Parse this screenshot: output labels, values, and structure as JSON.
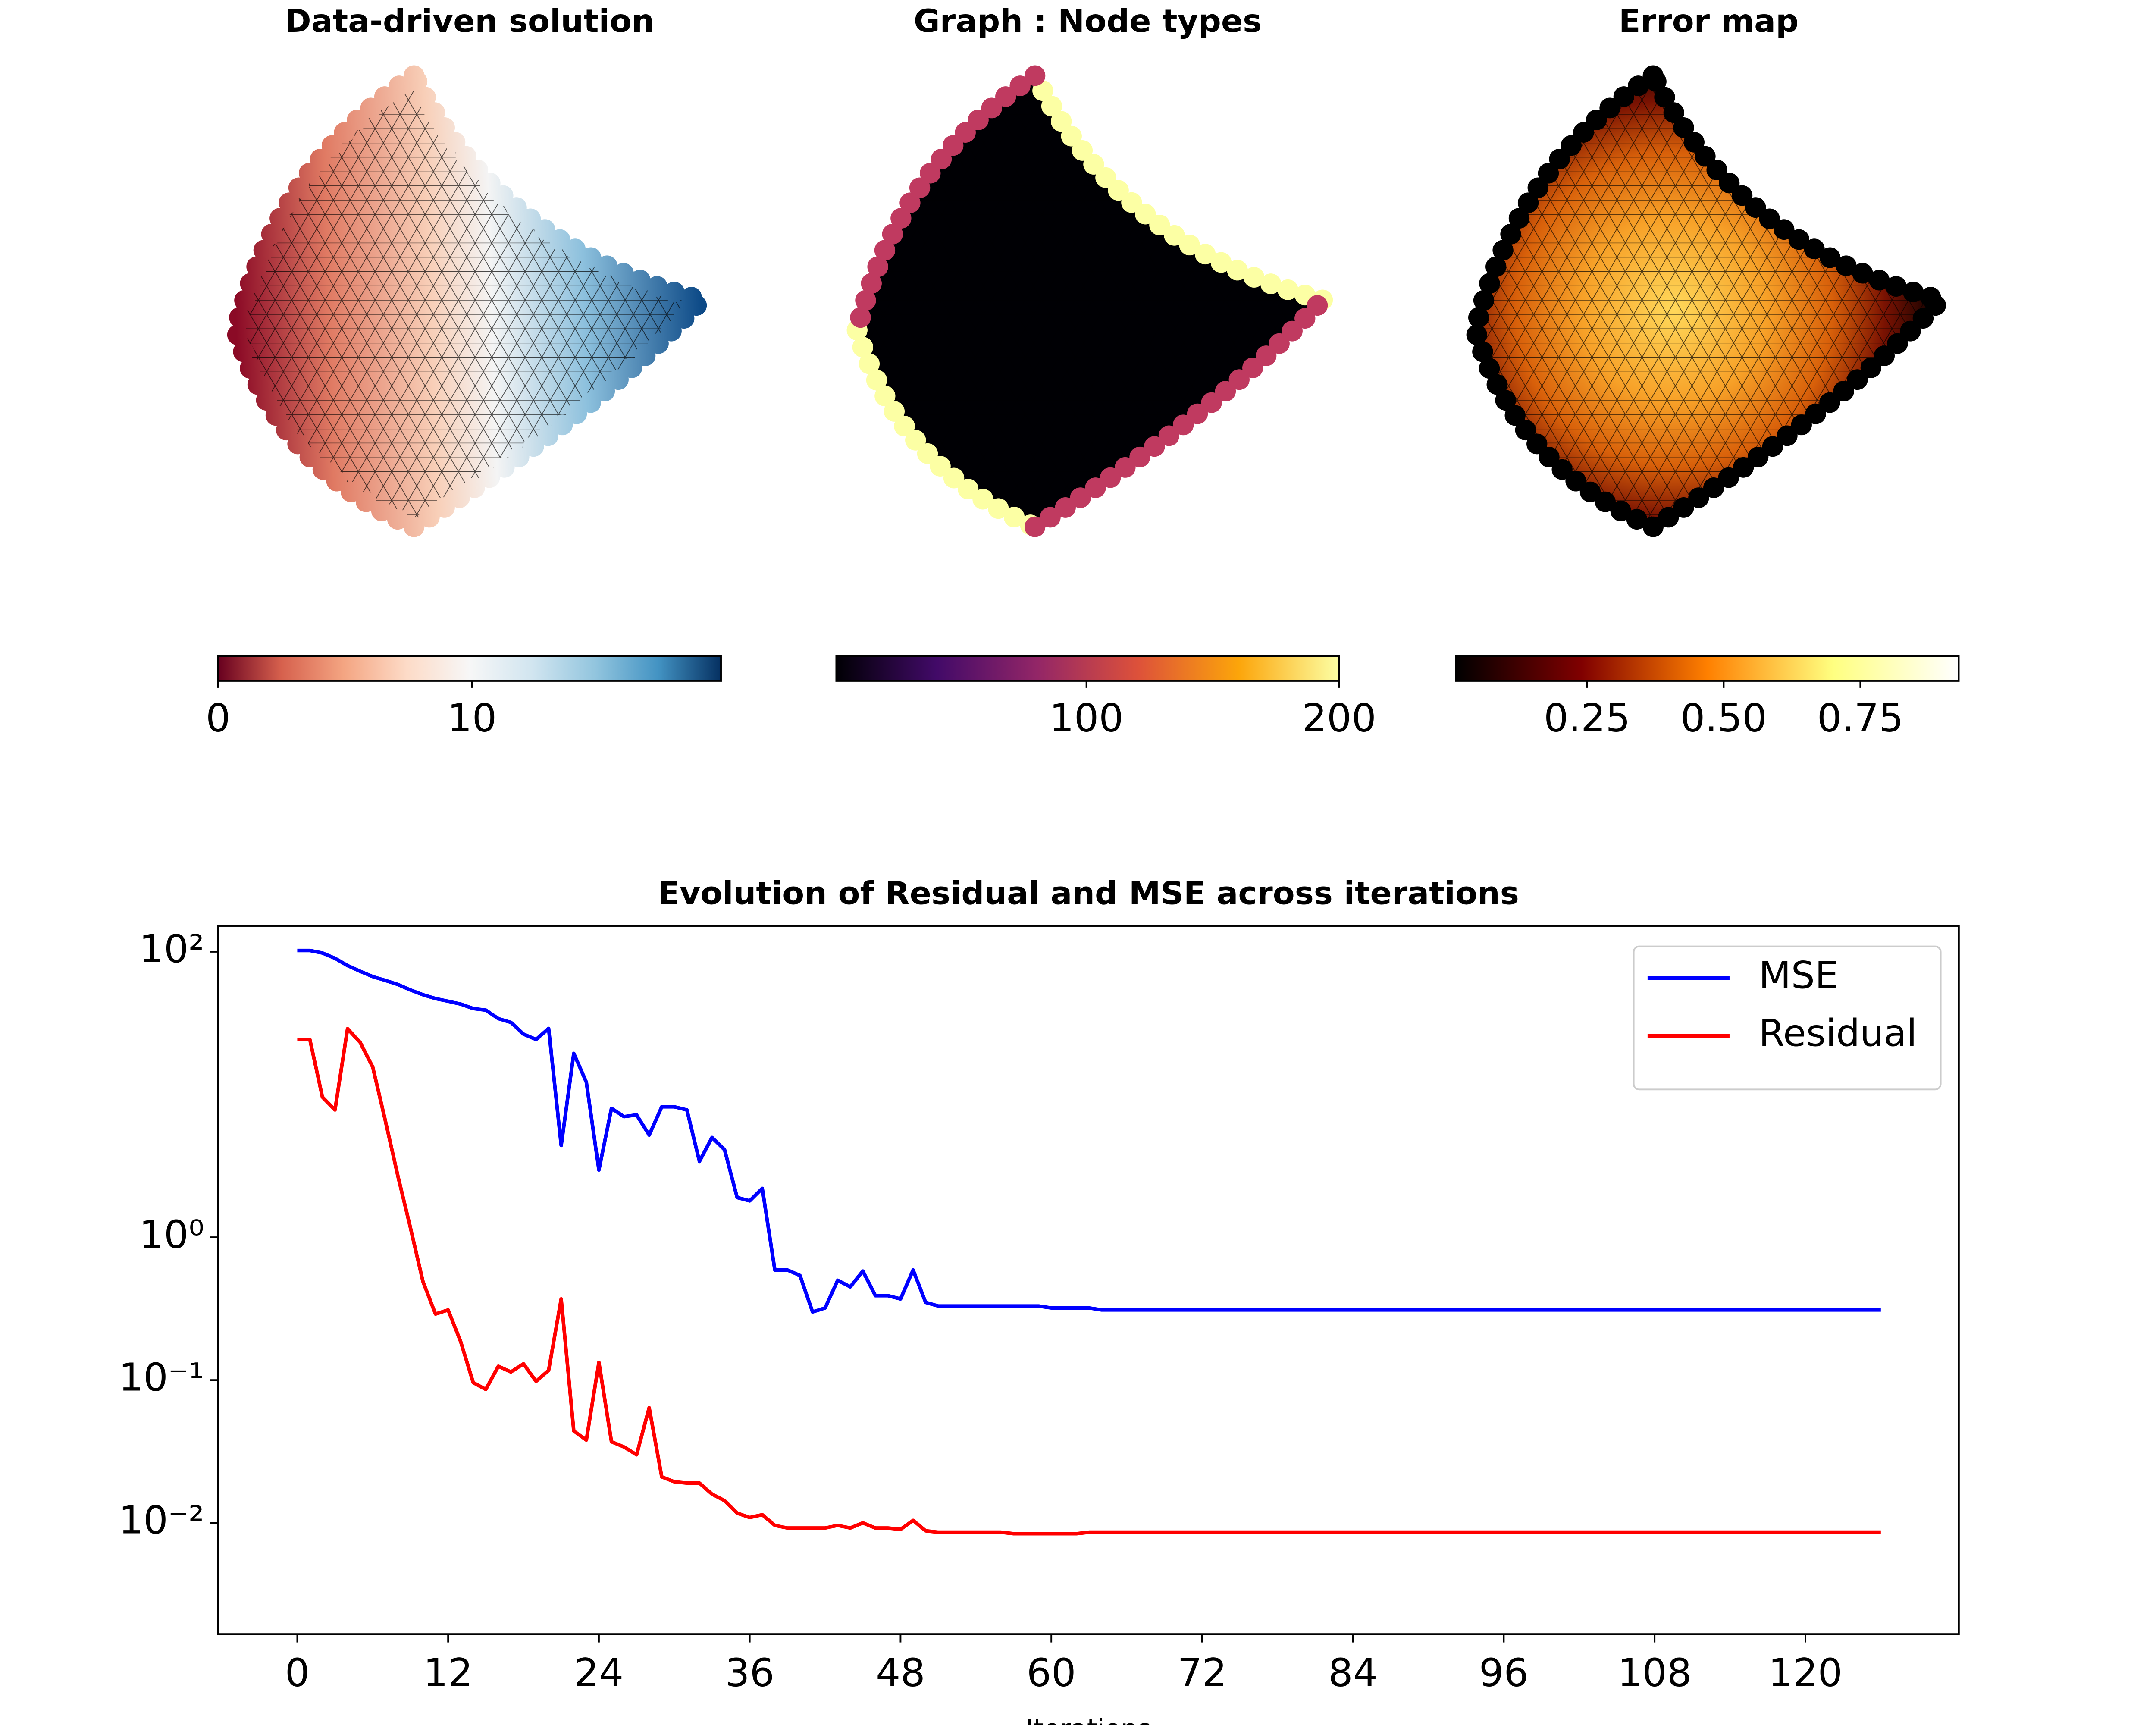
{
  "chart_data": [
    {
      "type": "mesh",
      "title": "Data-driven solution",
      "xlim": [
        0,
        19.8
      ],
      "xticks": [
        0,
        10
      ],
      "colors": [
        "#67001f",
        "#d6604d",
        "#f4a582",
        "#fddbc7",
        "#f7f7f7",
        "#d1e5f0",
        "#92c5de",
        "#4393c3",
        "#053061"
      ]
    },
    {
      "type": "mesh",
      "title": "Graph : Node types",
      "xlim": [
        1,
        200
      ],
      "xticks": [
        100,
        200
      ],
      "colors": [
        "#000004",
        "#420a68",
        "#932667",
        "#dd513a",
        "#fca50a",
        "#fcffa4"
      ]
    },
    {
      "type": "mesh",
      "title": "Error map",
      "xlim": [
        0.01,
        0.93
      ],
      "xticks": [
        0.25,
        {
          "value": 0.5,
          "label": "0.50"
        },
        0.75
      ],
      "colors": [
        "#000000",
        "#800000",
        "#ff8000",
        "#ffff80",
        "#ffffff"
      ]
    },
    {
      "type": "line",
      "title": "Evolution of Residual and MSE across iterations",
      "xlabel": "Iterations",
      "yscale": "log",
      "legend": "upper right",
      "xlim": [
        -6.3,
        132.2
      ],
      "xticks": [
        0,
        12,
        24,
        36,
        48,
        60,
        72,
        84,
        96,
        108,
        120
      ],
      "ylim": [
        0.00166,
        152
      ],
      "yticks": [
        {
          "value": 100,
          "label": "10²"
        },
        {
          "value": 1,
          "label": "10⁰"
        },
        {
          "value": 0.1,
          "label": "10⁻¹"
        },
        {
          "value": 0.01,
          "label": "10⁻²"
        }
      ],
      "x": [
        0,
        1,
        2,
        3,
        4,
        5,
        6,
        7,
        8,
        9,
        10,
        11,
        12,
        13,
        14,
        15,
        16,
        17,
        18,
        19,
        20,
        21,
        22,
        23,
        24,
        25,
        26,
        27,
        28,
        29,
        30,
        31,
        32,
        33,
        34,
        35,
        36,
        37,
        38,
        39,
        40,
        41,
        42,
        43,
        44,
        45,
        46,
        47,
        48,
        49,
        50,
        51,
        52,
        53,
        54,
        55,
        56,
        57,
        58,
        59,
        60,
        61,
        62,
        63,
        64,
        65,
        66,
        67,
        68,
        69,
        70,
        71,
        72,
        73,
        74,
        75,
        76,
        77,
        78,
        79,
        80,
        81,
        82,
        83,
        84,
        85,
        86,
        87,
        88,
        89,
        90,
        91,
        92,
        93,
        94,
        95,
        96,
        97,
        98,
        99,
        100,
        101,
        102,
        103,
        104,
        105,
        106,
        107,
        108,
        109,
        110,
        111,
        112,
        113,
        114,
        115,
        116,
        117,
        118,
        119,
        120,
        121,
        122,
        123,
        124,
        125,
        126
      ],
      "series": [
        {
          "name": "MSE",
          "color": "#0000ff",
          "values": [
            102,
            102,
            98,
            90,
            80,
            73,
            67,
            63,
            59,
            54,
            50,
            47,
            45,
            43,
            40,
            39,
            34,
            32,
            26.5,
            24.3,
            29,
            4.4,
            19.4,
            12.2,
            2.96,
            8.0,
            7.0,
            7.2,
            5.2,
            8.2,
            8.2,
            7.8,
            3.4,
            5.0,
            4.1,
            1.9,
            1.8,
            2.2,
            0.59,
            0.59,
            0.54,
            0.3,
            0.32,
            0.5,
            0.45,
            0.58,
            0.39,
            0.39,
            0.37,
            0.59,
            0.35,
            0.33,
            0.33,
            0.33,
            0.33,
            0.33,
            0.33,
            0.33,
            0.33,
            0.33,
            0.32,
            0.32,
            0.32,
            0.32,
            0.31,
            0.31,
            0.31,
            0.31,
            0.31,
            0.31,
            0.31,
            0.31,
            0.31,
            0.31,
            0.31,
            0.31,
            0.31,
            0.31,
            0.31,
            0.31,
            0.31,
            0.31,
            0.31,
            0.31,
            0.31,
            0.31,
            0.31,
            0.31,
            0.31,
            0.31,
            0.31,
            0.31,
            0.31,
            0.31,
            0.31,
            0.31,
            0.31,
            0.31,
            0.31,
            0.31,
            0.31,
            0.31,
            0.31,
            0.31,
            0.31,
            0.31,
            0.31,
            0.31,
            0.31,
            0.31,
            0.31,
            0.31,
            0.31,
            0.31,
            0.31,
            0.31,
            0.31,
            0.31,
            0.31,
            0.31,
            0.31,
            0.31,
            0.31,
            0.31,
            0.31,
            0.31,
            0.31
          ]
        },
        {
          "name": "Residual",
          "color": "#ff0000",
          "values": [
            24.3,
            24.3,
            9.6,
            7.8,
            28.9,
            23.2,
            15.6,
            6.6,
            2.7,
            1.17,
            0.49,
            0.29,
            0.31,
            0.186,
            0.096,
            0.086,
            0.125,
            0.114,
            0.13,
            0.098,
            0.117,
            0.37,
            0.044,
            0.038,
            0.133,
            0.037,
            0.034,
            0.03,
            0.064,
            0.021,
            0.0194,
            0.019,
            0.019,
            0.0159,
            0.0143,
            0.0117,
            0.0109,
            0.0114,
            0.0096,
            0.0092,
            0.0092,
            0.0092,
            0.0092,
            0.0096,
            0.0092,
            0.01,
            0.0092,
            0.0092,
            0.009,
            0.0104,
            0.0088,
            0.0086,
            0.0086,
            0.0086,
            0.0086,
            0.0086,
            0.0086,
            0.0084,
            0.0084,
            0.0084,
            0.0084,
            0.0084,
            0.0084,
            0.0086,
            0.0086,
            0.0086,
            0.0086,
            0.0086,
            0.0086,
            0.0086,
            0.0086,
            0.0086,
            0.0086,
            0.0086,
            0.0086,
            0.0086,
            0.0086,
            0.0086,
            0.0086,
            0.0086,
            0.0086,
            0.0086,
            0.0086,
            0.0086,
            0.0086,
            0.0086,
            0.0086,
            0.0086,
            0.0086,
            0.0086,
            0.0086,
            0.0086,
            0.0086,
            0.0086,
            0.0086,
            0.0086,
            0.0086,
            0.0086,
            0.0086,
            0.0086,
            0.0086,
            0.0086,
            0.0086,
            0.0086,
            0.0086,
            0.0086,
            0.0086,
            0.0086,
            0.0086,
            0.0086,
            0.0086,
            0.0086,
            0.0086,
            0.0086,
            0.0086,
            0.0086,
            0.0086,
            0.0086,
            0.0086,
            0.0086,
            0.0086,
            0.0086,
            0.0086,
            0.0086,
            0.0086,
            0.0086,
            0.0086
          ]
        }
      ]
    }
  ]
}
